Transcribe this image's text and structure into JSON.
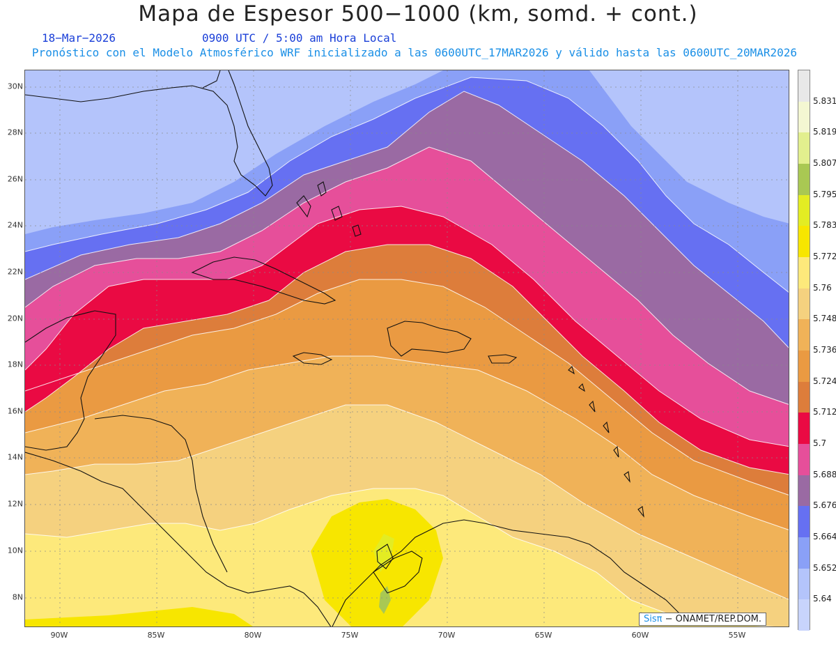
{
  "title": "Mapa de Espesor 500−1000 (km, somd. + cont.)",
  "date": "18−Mar−2026",
  "time": "0900 UTC / 5:00 am Hora Local",
  "model_line": "Pronóstico con el Modelo Atmosférico WRF inicializado a las 0600UTC_17MAR2026 y válido hasta las  0600UTC_20MAR2026",
  "credit": {
    "sis": "Sisπ",
    "org": "− ONAMET/REP.DOM."
  },
  "lat_labels": [
    "30N",
    "28N",
    "26N",
    "24N",
    "22N",
    "20N",
    "18N",
    "16N",
    "14N",
    "12N",
    "10N",
    "8N"
  ],
  "lon_labels": [
    "90W",
    "85W",
    "80W",
    "75W",
    "70W",
    "65W",
    "60W",
    "55W"
  ],
  "colorbar": {
    "labels": [
      "5.831",
      "5.819",
      "5.807",
      "5.795",
      "5.783",
      "5.772",
      "5.76",
      "5.748",
      "5.736",
      "5.724",
      "5.712",
      "5.7",
      "5.688",
      "5.676",
      "5.664",
      "5.652",
      "5.64"
    ],
    "colors": [
      "#e8e8e8",
      "#f4f7d2",
      "#e2ef8e",
      "#a9c853",
      "#e3ec23",
      "#f7e600",
      "#fde97b",
      "#f5d17f",
      "#f0b258",
      "#ea9a42",
      "#dd7d3b",
      "#ea0a43",
      "#e64f9a",
      "#9a6aa3",
      "#6670f2",
      "#8aa0f7",
      "#b4c4fb",
      "#c8d4fc"
    ]
  }
}
